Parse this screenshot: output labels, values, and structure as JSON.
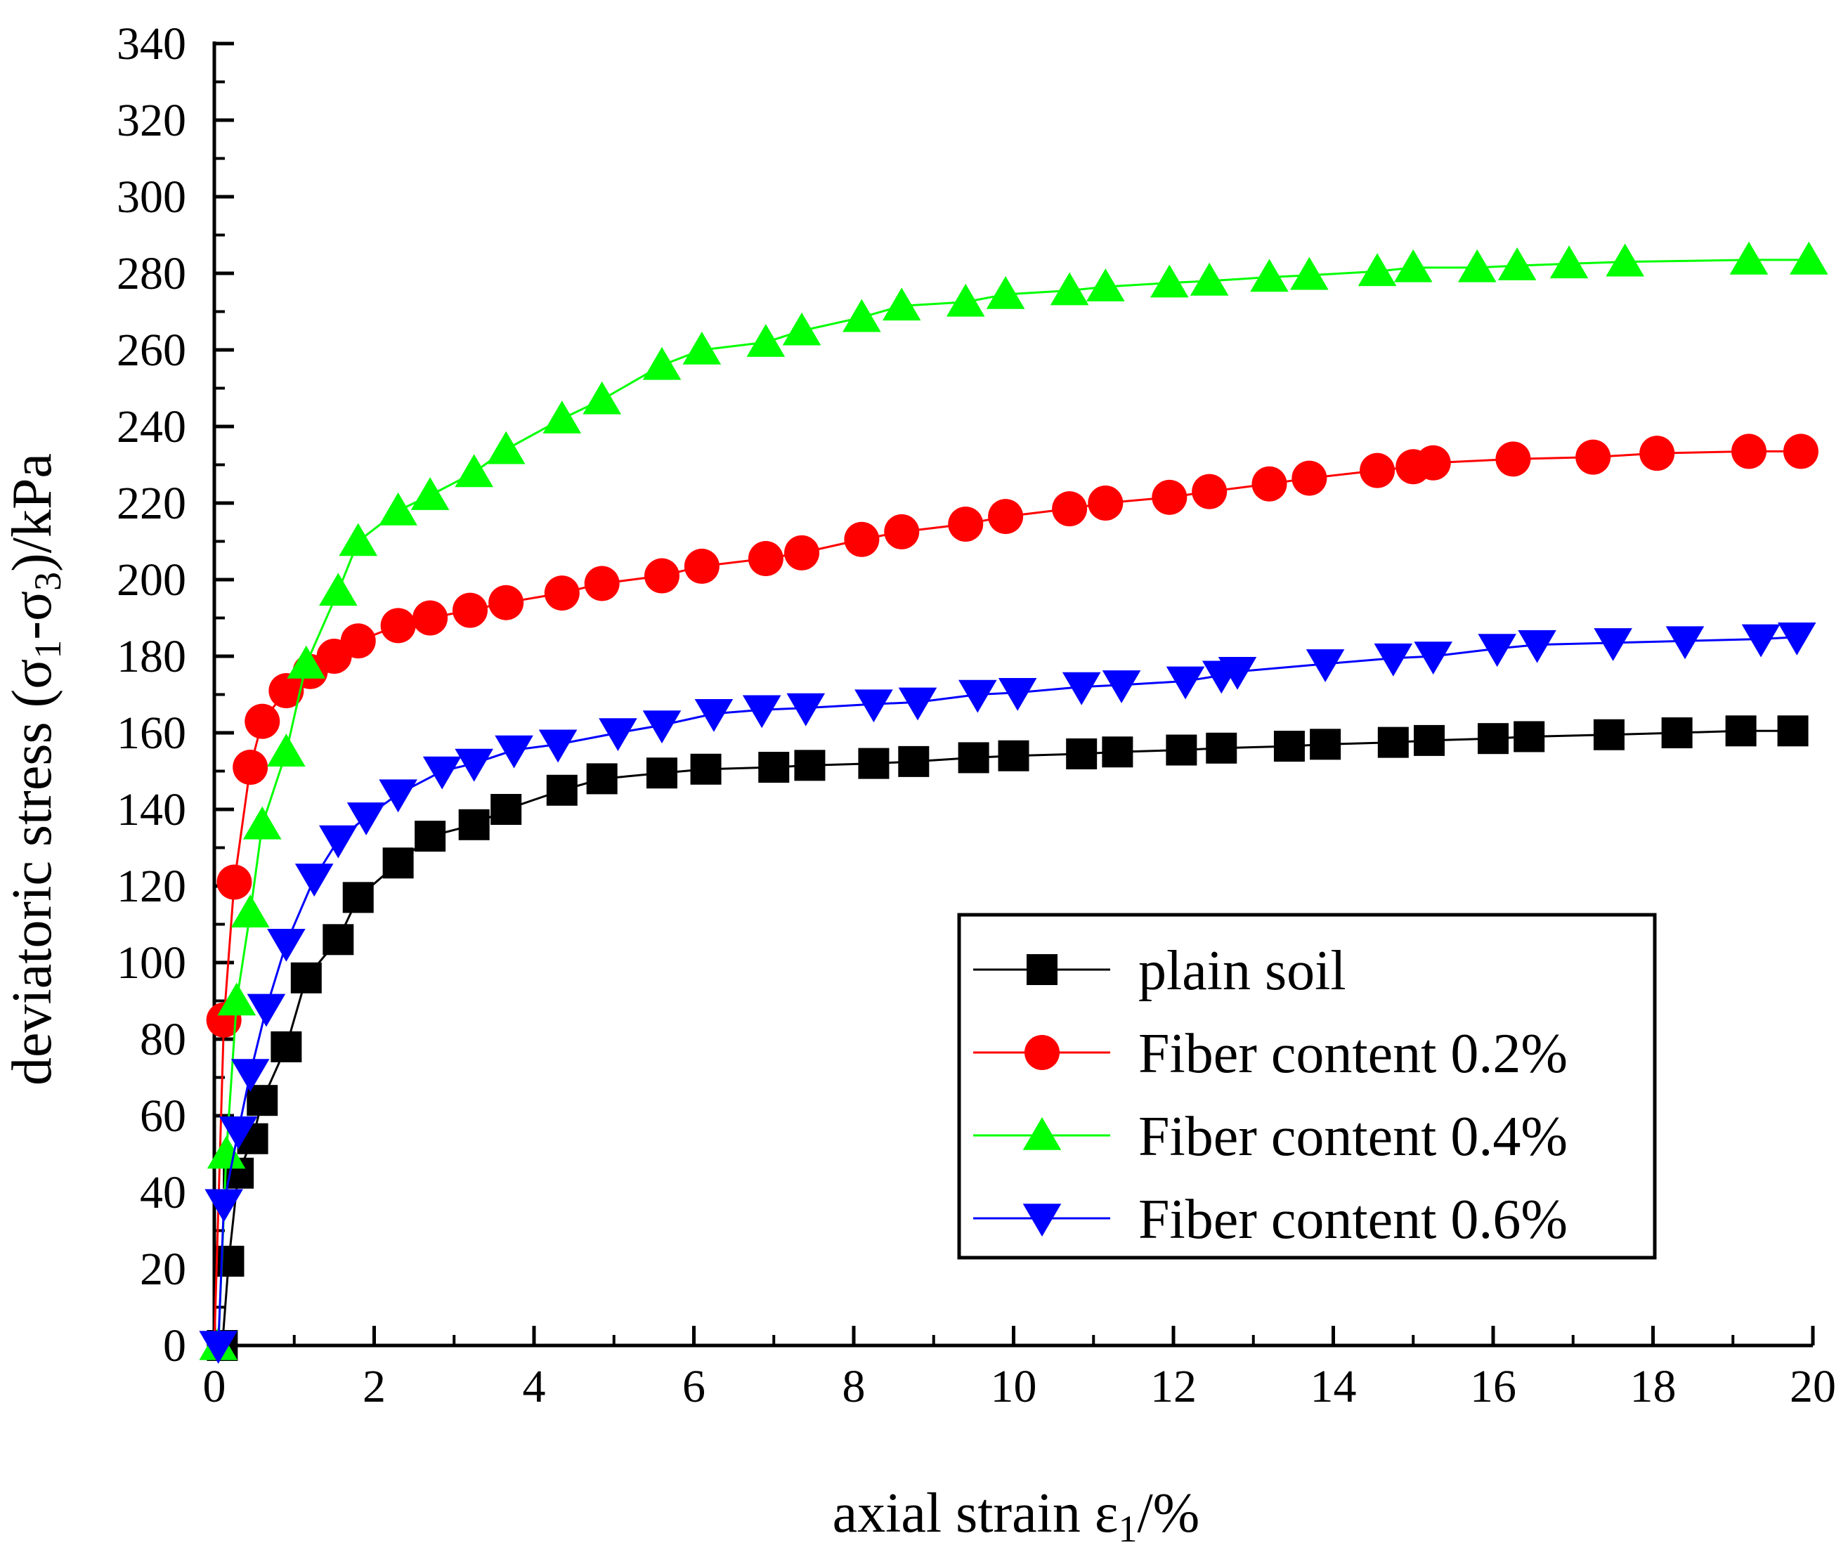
{
  "chart_data": {
    "type": "line",
    "title": "",
    "xlabel": "axial strain ε1/%",
    "xlabel_parts": {
      "main": "axial strain ε",
      "sub": "1",
      "tail": "/%"
    },
    "ylabel": "deviatoric stress (σ1-σ3)/kPa",
    "ylabel_parts": {
      "p1": "deviatoric stress (σ",
      "s1": "1",
      "p2": "-σ",
      "s2": "3",
      "p3": ")/kPa"
    },
    "xlim": [
      0,
      20
    ],
    "ylim": [
      0,
      340
    ],
    "xticks": [
      0,
      2,
      4,
      6,
      8,
      10,
      12,
      14,
      16,
      18,
      20
    ],
    "yticks": [
      0,
      20,
      40,
      60,
      80,
      100,
      120,
      140,
      160,
      180,
      200,
      220,
      240,
      260,
      280,
      300,
      320,
      340
    ],
    "grid": false,
    "legend_position": "lower-right",
    "series": [
      {
        "name": "plain soil",
        "color": "#000000",
        "marker": "square",
        "x": [
          0.1,
          0.18,
          0.3,
          0.48,
          0.6,
          0.9,
          1.15,
          1.55,
          1.8,
          2.3,
          2.7,
          3.25,
          3.65,
          4.35,
          4.85,
          5.6,
          6.15,
          7.0,
          7.45,
          8.25,
          8.75,
          9.5,
          10.0,
          10.85,
          11.3,
          12.1,
          12.6,
          13.45,
          13.9,
          14.75,
          15.2,
          16.0,
          16.45,
          17.45,
          18.3,
          19.1,
          19.75
        ],
        "y": [
          0,
          22,
          45,
          54,
          64,
          78,
          96,
          106,
          117,
          126,
          133,
          136,
          140,
          145,
          148,
          149.5,
          150.5,
          151,
          151.5,
          152,
          152.5,
          153.5,
          154,
          154.5,
          155,
          155.5,
          156,
          156.5,
          157,
          157.5,
          158,
          158.5,
          159,
          159.5,
          160,
          160.5,
          160.5
        ]
      },
      {
        "name": "Fiber content 0.2%",
        "color": "#ff0000",
        "marker": "circle",
        "x": [
          0.12,
          0.25,
          0.45,
          0.6,
          0.9,
          1.2,
          1.5,
          1.8,
          2.3,
          2.7,
          3.2,
          3.65,
          4.35,
          4.85,
          5.6,
          6.1,
          6.9,
          7.35,
          8.1,
          8.6,
          9.4,
          9.9,
          10.7,
          11.15,
          11.95,
          12.45,
          13.2,
          13.7,
          14.55,
          15.0,
          15.25,
          16.25,
          17.25,
          18.05,
          19.2,
          19.85
        ],
        "y": [
          85,
          121,
          151,
          163,
          171,
          176,
          180,
          184,
          188,
          190,
          192,
          194,
          196.5,
          199,
          201,
          203.5,
          205.5,
          207,
          210.5,
          212.5,
          214.5,
          216.5,
          218.5,
          220,
          221.5,
          223,
          225,
          226.5,
          228.5,
          229.5,
          230.5,
          231.5,
          232,
          233,
          233.5,
          233.5
        ]
      },
      {
        "name": "Fiber content 0.4%",
        "color": "#00ff00",
        "marker": "triangle-up",
        "x": [
          0.05,
          0.15,
          0.28,
          0.45,
          0.6,
          0.9,
          1.15,
          1.55,
          1.8,
          2.3,
          2.7,
          3.25,
          3.65,
          4.35,
          4.85,
          5.6,
          6.1,
          6.9,
          7.35,
          8.1,
          8.6,
          9.4,
          9.9,
          10.7,
          11.15,
          11.95,
          12.45,
          13.2,
          13.7,
          14.55,
          15.0,
          15.8,
          16.3,
          16.95,
          17.65,
          19.2,
          19.95
        ],
        "y": [
          0,
          50,
          90,
          113,
          136,
          155,
          178,
          197,
          210,
          218,
          222,
          228,
          234,
          242,
          247,
          256,
          260,
          262,
          265,
          268.5,
          271.5,
          272.5,
          274.5,
          275.5,
          276.5,
          277.5,
          278,
          279,
          279.5,
          280.5,
          281.5,
          281.5,
          282,
          282.5,
          283,
          283.5,
          283.5
        ]
      },
      {
        "name": "Fiber content 0.6%",
        "color": "#0000ff",
        "marker": "triangle-down",
        "x": [
          0.05,
          0.12,
          0.3,
          0.45,
          0.65,
          0.9,
          1.25,
          1.55,
          1.9,
          2.3,
          2.85,
          3.25,
          3.75,
          4.3,
          5.05,
          5.6,
          6.25,
          6.85,
          7.4,
          8.25,
          8.8,
          9.55,
          10.05,
          10.85,
          11.35,
          12.15,
          12.6,
          12.8,
          13.9,
          14.75,
          15.25,
          16.05,
          16.55,
          17.5,
          18.4,
          19.35,
          19.8
        ],
        "y": [
          0,
          37,
          56,
          71,
          88,
          105,
          122,
          132,
          138,
          144,
          150,
          152,
          155.5,
          157,
          160,
          162,
          165,
          166,
          166.5,
          167.5,
          168,
          170,
          170.5,
          172,
          172.5,
          173.5,
          175,
          176,
          178,
          179.5,
          180,
          182,
          183,
          183.5,
          184,
          184.5,
          185
        ]
      }
    ]
  }
}
